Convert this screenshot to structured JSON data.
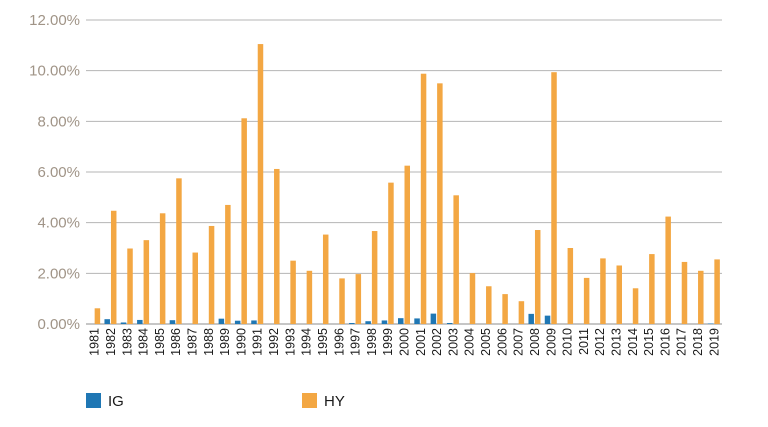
{
  "chart_data": {
    "type": "bar",
    "categories": [
      "1981",
      "1982",
      "1983",
      "1984",
      "1985",
      "1986",
      "1987",
      "1988",
      "1989",
      "1990",
      "1991",
      "1992",
      "1993",
      "1994",
      "1995",
      "1996",
      "1997",
      "1998",
      "1999",
      "2000",
      "2001",
      "2002",
      "2003",
      "2004",
      "2005",
      "2006",
      "2007",
      "2008",
      "2009",
      "2010",
      "2011",
      "2012",
      "2013",
      "2014",
      "2015",
      "2016",
      "2017",
      "2018",
      "2019"
    ],
    "series": [
      {
        "name": "IG",
        "color": "#1f77b4",
        "values": [
          0.0,
          0.19,
          0.06,
          0.16,
          0.0,
          0.15,
          0.0,
          0.0,
          0.21,
          0.13,
          0.14,
          0.0,
          0.0,
          0.0,
          0.0,
          0.0,
          0.04,
          0.11,
          0.14,
          0.23,
          0.22,
          0.41,
          0.04,
          0.0,
          0.0,
          0.0,
          0.0,
          0.4,
          0.33,
          0.0,
          0.0,
          0.0,
          0.0,
          0.0,
          0.0,
          0.0,
          0.0,
          0.0,
          0.02
        ]
      },
      {
        "name": "HY",
        "color": "#f3a743",
        "values": [
          0.62,
          4.47,
          2.98,
          3.31,
          4.37,
          5.75,
          2.82,
          3.87,
          4.7,
          8.12,
          11.05,
          6.12,
          2.5,
          2.1,
          3.53,
          1.8,
          1.97,
          3.67,
          5.58,
          6.25,
          9.88,
          9.5,
          5.08,
          2.01,
          1.49,
          1.18,
          0.9,
          3.71,
          9.94,
          3.0,
          1.82,
          2.59,
          2.31,
          1.41,
          2.76,
          4.24,
          2.45,
          2.1,
          2.55
        ]
      }
    ],
    "yticks": [
      "0.00%",
      "2.00%",
      "4.00%",
      "6.00%",
      "8.00%",
      "10.00%",
      "12.00%"
    ],
    "ylim": [
      0,
      12
    ],
    "grid": true,
    "legend": "bottom-left"
  }
}
